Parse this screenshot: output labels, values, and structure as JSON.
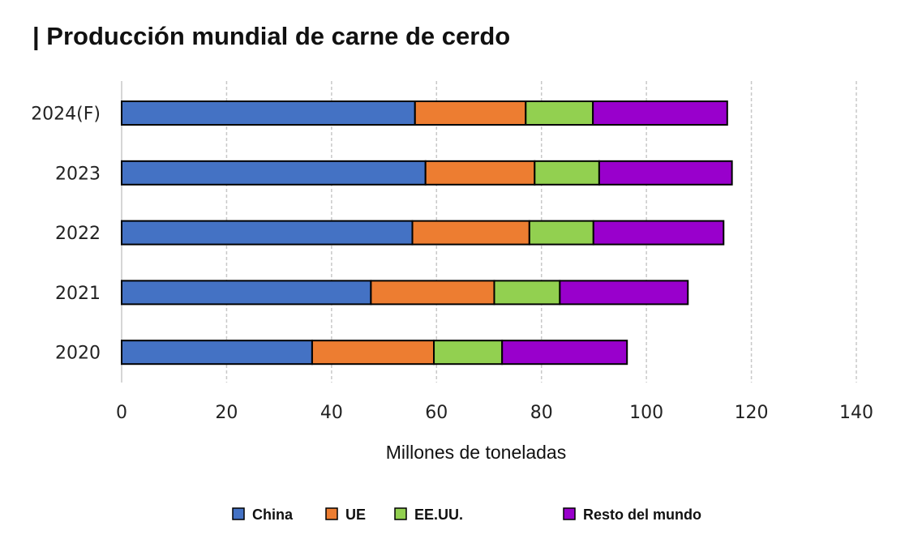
{
  "chart_data": {
    "type": "bar",
    "orientation": "horizontal",
    "stacked": true,
    "title": "| Producción mundial de carne de cerdo",
    "xlabel": "Millones de toneladas",
    "ylabel": "",
    "xlim": [
      0,
      140
    ],
    "xticks": [
      0,
      20,
      40,
      60,
      80,
      100,
      120,
      140
    ],
    "grid": "vertical dashed",
    "legend_position": "bottom",
    "categories": [
      "2024(F)",
      "2023",
      "2022",
      "2021",
      "2020"
    ],
    "series": [
      {
        "name": "China",
        "color": "#4472C4",
        "values": [
          55.9,
          57.9,
          55.4,
          47.5,
          36.3
        ]
      },
      {
        "name": "UE",
        "color": "#ED7D31",
        "values": [
          21.1,
          20.8,
          22.3,
          23.5,
          23.2
        ]
      },
      {
        "name": "EE.UU.",
        "color": "#92D050",
        "values": [
          12.8,
          12.3,
          12.2,
          12.5,
          13.0
        ]
      },
      {
        "name": "Resto del mundo",
        "color": "#9900CC",
        "values": [
          25.6,
          25.3,
          24.8,
          24.4,
          23.8
        ]
      }
    ]
  }
}
